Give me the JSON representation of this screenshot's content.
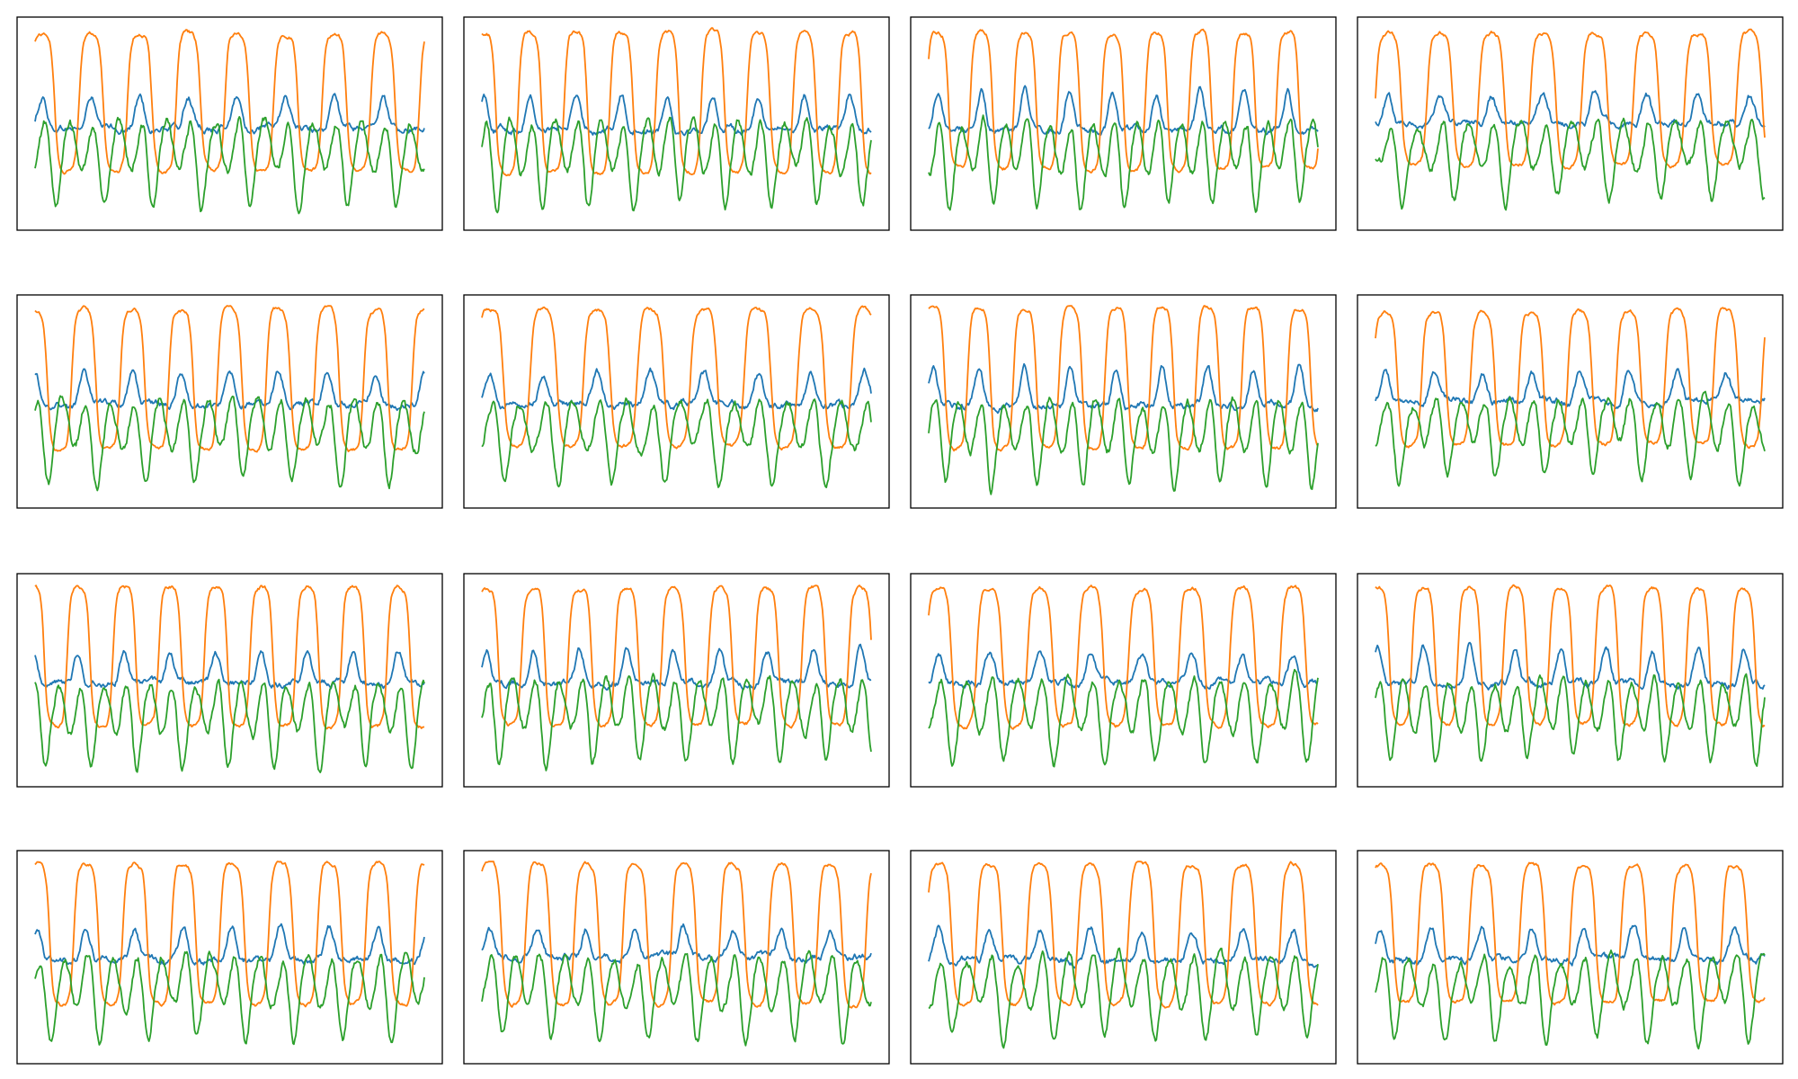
{
  "colors": {
    "blue": "#1f77b4",
    "orange": "#ff7f0e",
    "green": "#2ca02c",
    "frame": "#000000",
    "background": "#ffffff"
  },
  "chart_data": [
    {
      "type": "line",
      "panel": 1,
      "grid": false,
      "axes_visible": false,
      "x_range": [
        0,
        400
      ],
      "y_range": [
        -1,
        1
      ],
      "series": [
        {
          "color": "blue",
          "shape": {
            "period": 50,
            "phase": 0.1,
            "center": 0.0,
            "amplitude": 0.2,
            "noise": 0.05
          }
        },
        {
          "color": "orange",
          "shape": {
            "period": 50,
            "phase": 0.1,
            "center": 0.22,
            "amplitude": 0.7,
            "noise": 0.03
          }
        },
        {
          "color": "green",
          "shape": {
            "period": 50,
            "phase": 0.35,
            "center": -0.25,
            "amplitude": 0.45,
            "noise": 0.07
          }
        }
      ]
    },
    {
      "type": "line",
      "panel": 2,
      "grid": false,
      "axes_visible": false,
      "x_range": [
        0,
        400
      ],
      "y_range": [
        -1,
        1
      ],
      "series": [
        {
          "color": "blue",
          "shape": {
            "period": 47,
            "phase": 0.2,
            "center": 0.0,
            "amplitude": 0.22,
            "noise": 0.05
          }
        },
        {
          "color": "orange",
          "shape": {
            "period": 47,
            "phase": 0.2,
            "center": 0.22,
            "amplitude": 0.72,
            "noise": 0.03
          }
        },
        {
          "color": "green",
          "shape": {
            "period": 47,
            "phase": 0.45,
            "center": -0.25,
            "amplitude": 0.45,
            "noise": 0.07
          }
        }
      ]
    },
    {
      "type": "line",
      "panel": 3,
      "grid": false,
      "axes_visible": false,
      "x_range": [
        0,
        400
      ],
      "y_range": [
        -1,
        1
      ],
      "series": [
        {
          "color": "blue",
          "shape": {
            "period": 45,
            "phase": 0.05,
            "center": 0.0,
            "amplitude": 0.24,
            "noise": 0.05
          }
        },
        {
          "color": "orange",
          "shape": {
            "period": 45,
            "phase": 0.05,
            "center": 0.24,
            "amplitude": 0.7,
            "noise": 0.03
          }
        },
        {
          "color": "green",
          "shape": {
            "period": 45,
            "phase": 0.3,
            "center": -0.25,
            "amplitude": 0.45,
            "noise": 0.07
          }
        }
      ]
    },
    {
      "type": "line",
      "panel": 4,
      "grid": false,
      "axes_visible": false,
      "x_range": [
        0,
        400
      ],
      "y_range": [
        -1,
        1
      ],
      "series": [
        {
          "color": "blue",
          "shape": {
            "period": 53,
            "phase": 0.0,
            "center": 0.05,
            "amplitude": 0.18,
            "noise": 0.05
          }
        },
        {
          "color": "orange",
          "shape": {
            "period": 53,
            "phase": 0.0,
            "center": 0.25,
            "amplitude": 0.68,
            "noise": 0.03
          }
        },
        {
          "color": "green",
          "shape": {
            "period": 53,
            "phase": 0.25,
            "center": -0.22,
            "amplitude": 0.42,
            "noise": 0.07
          }
        }
      ]
    },
    {
      "type": "line",
      "panel": 5,
      "grid": false,
      "axes_visible": false,
      "x_range": [
        0,
        400
      ],
      "y_range": [
        -1,
        1
      ],
      "series": [
        {
          "color": "blue",
          "shape": {
            "period": 50,
            "phase": 0.25,
            "center": 0.02,
            "amplitude": 0.2,
            "noise": 0.05
          }
        },
        {
          "color": "orange",
          "shape": {
            "period": 50,
            "phase": 0.25,
            "center": 0.22,
            "amplitude": 0.72,
            "noise": 0.03
          }
        },
        {
          "color": "green",
          "shape": {
            "period": 50,
            "phase": 0.5,
            "center": -0.25,
            "amplitude": 0.45,
            "noise": 0.07
          }
        }
      ]
    },
    {
      "type": "line",
      "panel": 6,
      "grid": false,
      "axes_visible": false,
      "x_range": [
        0,
        400
      ],
      "y_range": [
        -1,
        1
      ],
      "series": [
        {
          "color": "blue",
          "shape": {
            "period": 55,
            "phase": 0.1,
            "center": 0.02,
            "amplitude": 0.2,
            "noise": 0.05
          }
        },
        {
          "color": "orange",
          "shape": {
            "period": 55,
            "phase": 0.1,
            "center": 0.24,
            "amplitude": 0.7,
            "noise": 0.03
          }
        },
        {
          "color": "green",
          "shape": {
            "period": 55,
            "phase": 0.35,
            "center": -0.25,
            "amplitude": 0.45,
            "noise": 0.07
          }
        }
      ]
    },
    {
      "type": "line",
      "panel": 7,
      "grid": false,
      "axes_visible": false,
      "x_range": [
        0,
        400
      ],
      "y_range": [
        -1,
        1
      ],
      "series": [
        {
          "color": "blue",
          "shape": {
            "period": 47,
            "phase": 0.15,
            "center": 0.02,
            "amplitude": 0.24,
            "noise": 0.05
          }
        },
        {
          "color": "orange",
          "shape": {
            "period": 47,
            "phase": 0.15,
            "center": 0.24,
            "amplitude": 0.72,
            "noise": 0.03
          }
        },
        {
          "color": "green",
          "shape": {
            "period": 47,
            "phase": 0.4,
            "center": -0.25,
            "amplitude": 0.45,
            "noise": 0.07
          }
        }
      ]
    },
    {
      "type": "line",
      "panel": 8,
      "grid": false,
      "axes_visible": false,
      "x_range": [
        0,
        400
      ],
      "y_range": [
        -1,
        1
      ],
      "series": [
        {
          "color": "blue",
          "shape": {
            "period": 50,
            "phase": 0.05,
            "center": 0.05,
            "amplitude": 0.18,
            "noise": 0.05
          }
        },
        {
          "color": "orange",
          "shape": {
            "period": 50,
            "phase": 0.05,
            "center": 0.24,
            "amplitude": 0.68,
            "noise": 0.03
          }
        },
        {
          "color": "green",
          "shape": {
            "period": 50,
            "phase": 0.3,
            "center": -0.22,
            "amplitude": 0.42,
            "noise": 0.07
          }
        }
      ]
    },
    {
      "type": "line",
      "panel": 9,
      "grid": false,
      "axes_visible": false,
      "x_range": [
        0,
        400
      ],
      "y_range": [
        -1,
        1
      ],
      "series": [
        {
          "color": "blue",
          "shape": {
            "period": 47,
            "phase": 0.3,
            "center": 0.02,
            "amplitude": 0.2,
            "noise": 0.05
          }
        },
        {
          "color": "orange",
          "shape": {
            "period": 47,
            "phase": 0.3,
            "center": 0.24,
            "amplitude": 0.72,
            "noise": 0.03
          }
        },
        {
          "color": "green",
          "shape": {
            "period": 47,
            "phase": 0.55,
            "center": -0.28,
            "amplitude": 0.45,
            "noise": 0.07
          }
        }
      ]
    },
    {
      "type": "line",
      "panel": 10,
      "grid": false,
      "axes_visible": false,
      "x_range": [
        0,
        400
      ],
      "y_range": [
        -1,
        1
      ],
      "series": [
        {
          "color": "blue",
          "shape": {
            "period": 48,
            "phase": 0.15,
            "center": 0.02,
            "amplitude": 0.22,
            "noise": 0.05
          }
        },
        {
          "color": "orange",
          "shape": {
            "period": 48,
            "phase": 0.15,
            "center": 0.24,
            "amplitude": 0.7,
            "noise": 0.03
          }
        },
        {
          "color": "green",
          "shape": {
            "period": 48,
            "phase": 0.4,
            "center": -0.25,
            "amplitude": 0.45,
            "noise": 0.07
          }
        }
      ]
    },
    {
      "type": "line",
      "panel": 11,
      "grid": false,
      "axes_visible": false,
      "x_range": [
        0,
        400
      ],
      "y_range": [
        -1,
        1
      ],
      "series": [
        {
          "color": "blue",
          "shape": {
            "period": 52,
            "phase": 0.05,
            "center": 0.02,
            "amplitude": 0.18,
            "noise": 0.05
          }
        },
        {
          "color": "orange",
          "shape": {
            "period": 52,
            "phase": 0.05,
            "center": 0.24,
            "amplitude": 0.7,
            "noise": 0.03
          }
        },
        {
          "color": "green",
          "shape": {
            "period": 52,
            "phase": 0.3,
            "center": -0.25,
            "amplitude": 0.45,
            "noise": 0.07
          }
        }
      ]
    },
    {
      "type": "line",
      "panel": 12,
      "grid": false,
      "axes_visible": false,
      "x_range": [
        0,
        400
      ],
      "y_range": [
        -1,
        1
      ],
      "series": [
        {
          "color": "blue",
          "shape": {
            "period": 47,
            "phase": 0.2,
            "center": 0.02,
            "amplitude": 0.22,
            "noise": 0.05
          }
        },
        {
          "color": "orange",
          "shape": {
            "period": 47,
            "phase": 0.2,
            "center": 0.25,
            "amplitude": 0.7,
            "noise": 0.03
          }
        },
        {
          "color": "green",
          "shape": {
            "period": 47,
            "phase": 0.45,
            "center": -0.25,
            "amplitude": 0.42,
            "noise": 0.07
          }
        }
      ]
    },
    {
      "type": "line",
      "panel": 13,
      "grid": false,
      "axes_visible": false,
      "x_range": [
        0,
        400
      ],
      "y_range": [
        -1,
        1
      ],
      "series": [
        {
          "color": "blue",
          "shape": {
            "period": 50,
            "phase": 0.2,
            "center": 0.02,
            "amplitude": 0.2,
            "noise": 0.05
          }
        },
        {
          "color": "orange",
          "shape": {
            "period": 50,
            "phase": 0.2,
            "center": 0.24,
            "amplitude": 0.72,
            "noise": 0.03
          }
        },
        {
          "color": "green",
          "shape": {
            "period": 50,
            "phase": 0.45,
            "center": -0.25,
            "amplitude": 0.45,
            "noise": 0.07
          }
        }
      ]
    },
    {
      "type": "line",
      "panel": 14,
      "grid": false,
      "axes_visible": false,
      "x_range": [
        0,
        400
      ],
      "y_range": [
        -1,
        1
      ],
      "series": [
        {
          "color": "blue",
          "shape": {
            "period": 50,
            "phase": 0.1,
            "center": 0.05,
            "amplitude": 0.18,
            "noise": 0.05
          }
        },
        {
          "color": "orange",
          "shape": {
            "period": 50,
            "phase": 0.1,
            "center": 0.24,
            "amplitude": 0.72,
            "noise": 0.03
          }
        },
        {
          "color": "green",
          "shape": {
            "period": 50,
            "phase": 0.35,
            "center": -0.25,
            "amplitude": 0.45,
            "noise": 0.07
          }
        }
      ]
    },
    {
      "type": "line",
      "panel": 15,
      "grid": false,
      "axes_visible": false,
      "x_range": [
        0,
        400
      ],
      "y_range": [
        -1,
        1
      ],
      "series": [
        {
          "color": "blue",
          "shape": {
            "period": 52,
            "phase": 0.05,
            "center": 0.02,
            "amplitude": 0.2,
            "noise": 0.05
          }
        },
        {
          "color": "orange",
          "shape": {
            "period": 52,
            "phase": 0.05,
            "center": 0.24,
            "amplitude": 0.72,
            "noise": 0.03
          }
        },
        {
          "color": "green",
          "shape": {
            "period": 52,
            "phase": 0.3,
            "center": -0.25,
            "amplitude": 0.45,
            "noise": 0.07
          }
        }
      ]
    },
    {
      "type": "line",
      "panel": 16,
      "grid": false,
      "axes_visible": false,
      "x_range": [
        0,
        400
      ],
      "y_range": [
        -1,
        1
      ],
      "series": [
        {
          "color": "blue",
          "shape": {
            "period": 52,
            "phase": 0.15,
            "center": 0.02,
            "amplitude": 0.2,
            "noise": 0.05
          }
        },
        {
          "color": "orange",
          "shape": {
            "period": 52,
            "phase": 0.15,
            "center": 0.24,
            "amplitude": 0.7,
            "noise": 0.03
          }
        },
        {
          "color": "green",
          "shape": {
            "period": 52,
            "phase": 0.4,
            "center": -0.25,
            "amplitude": 0.45,
            "noise": 0.07
          }
        }
      ]
    }
  ]
}
